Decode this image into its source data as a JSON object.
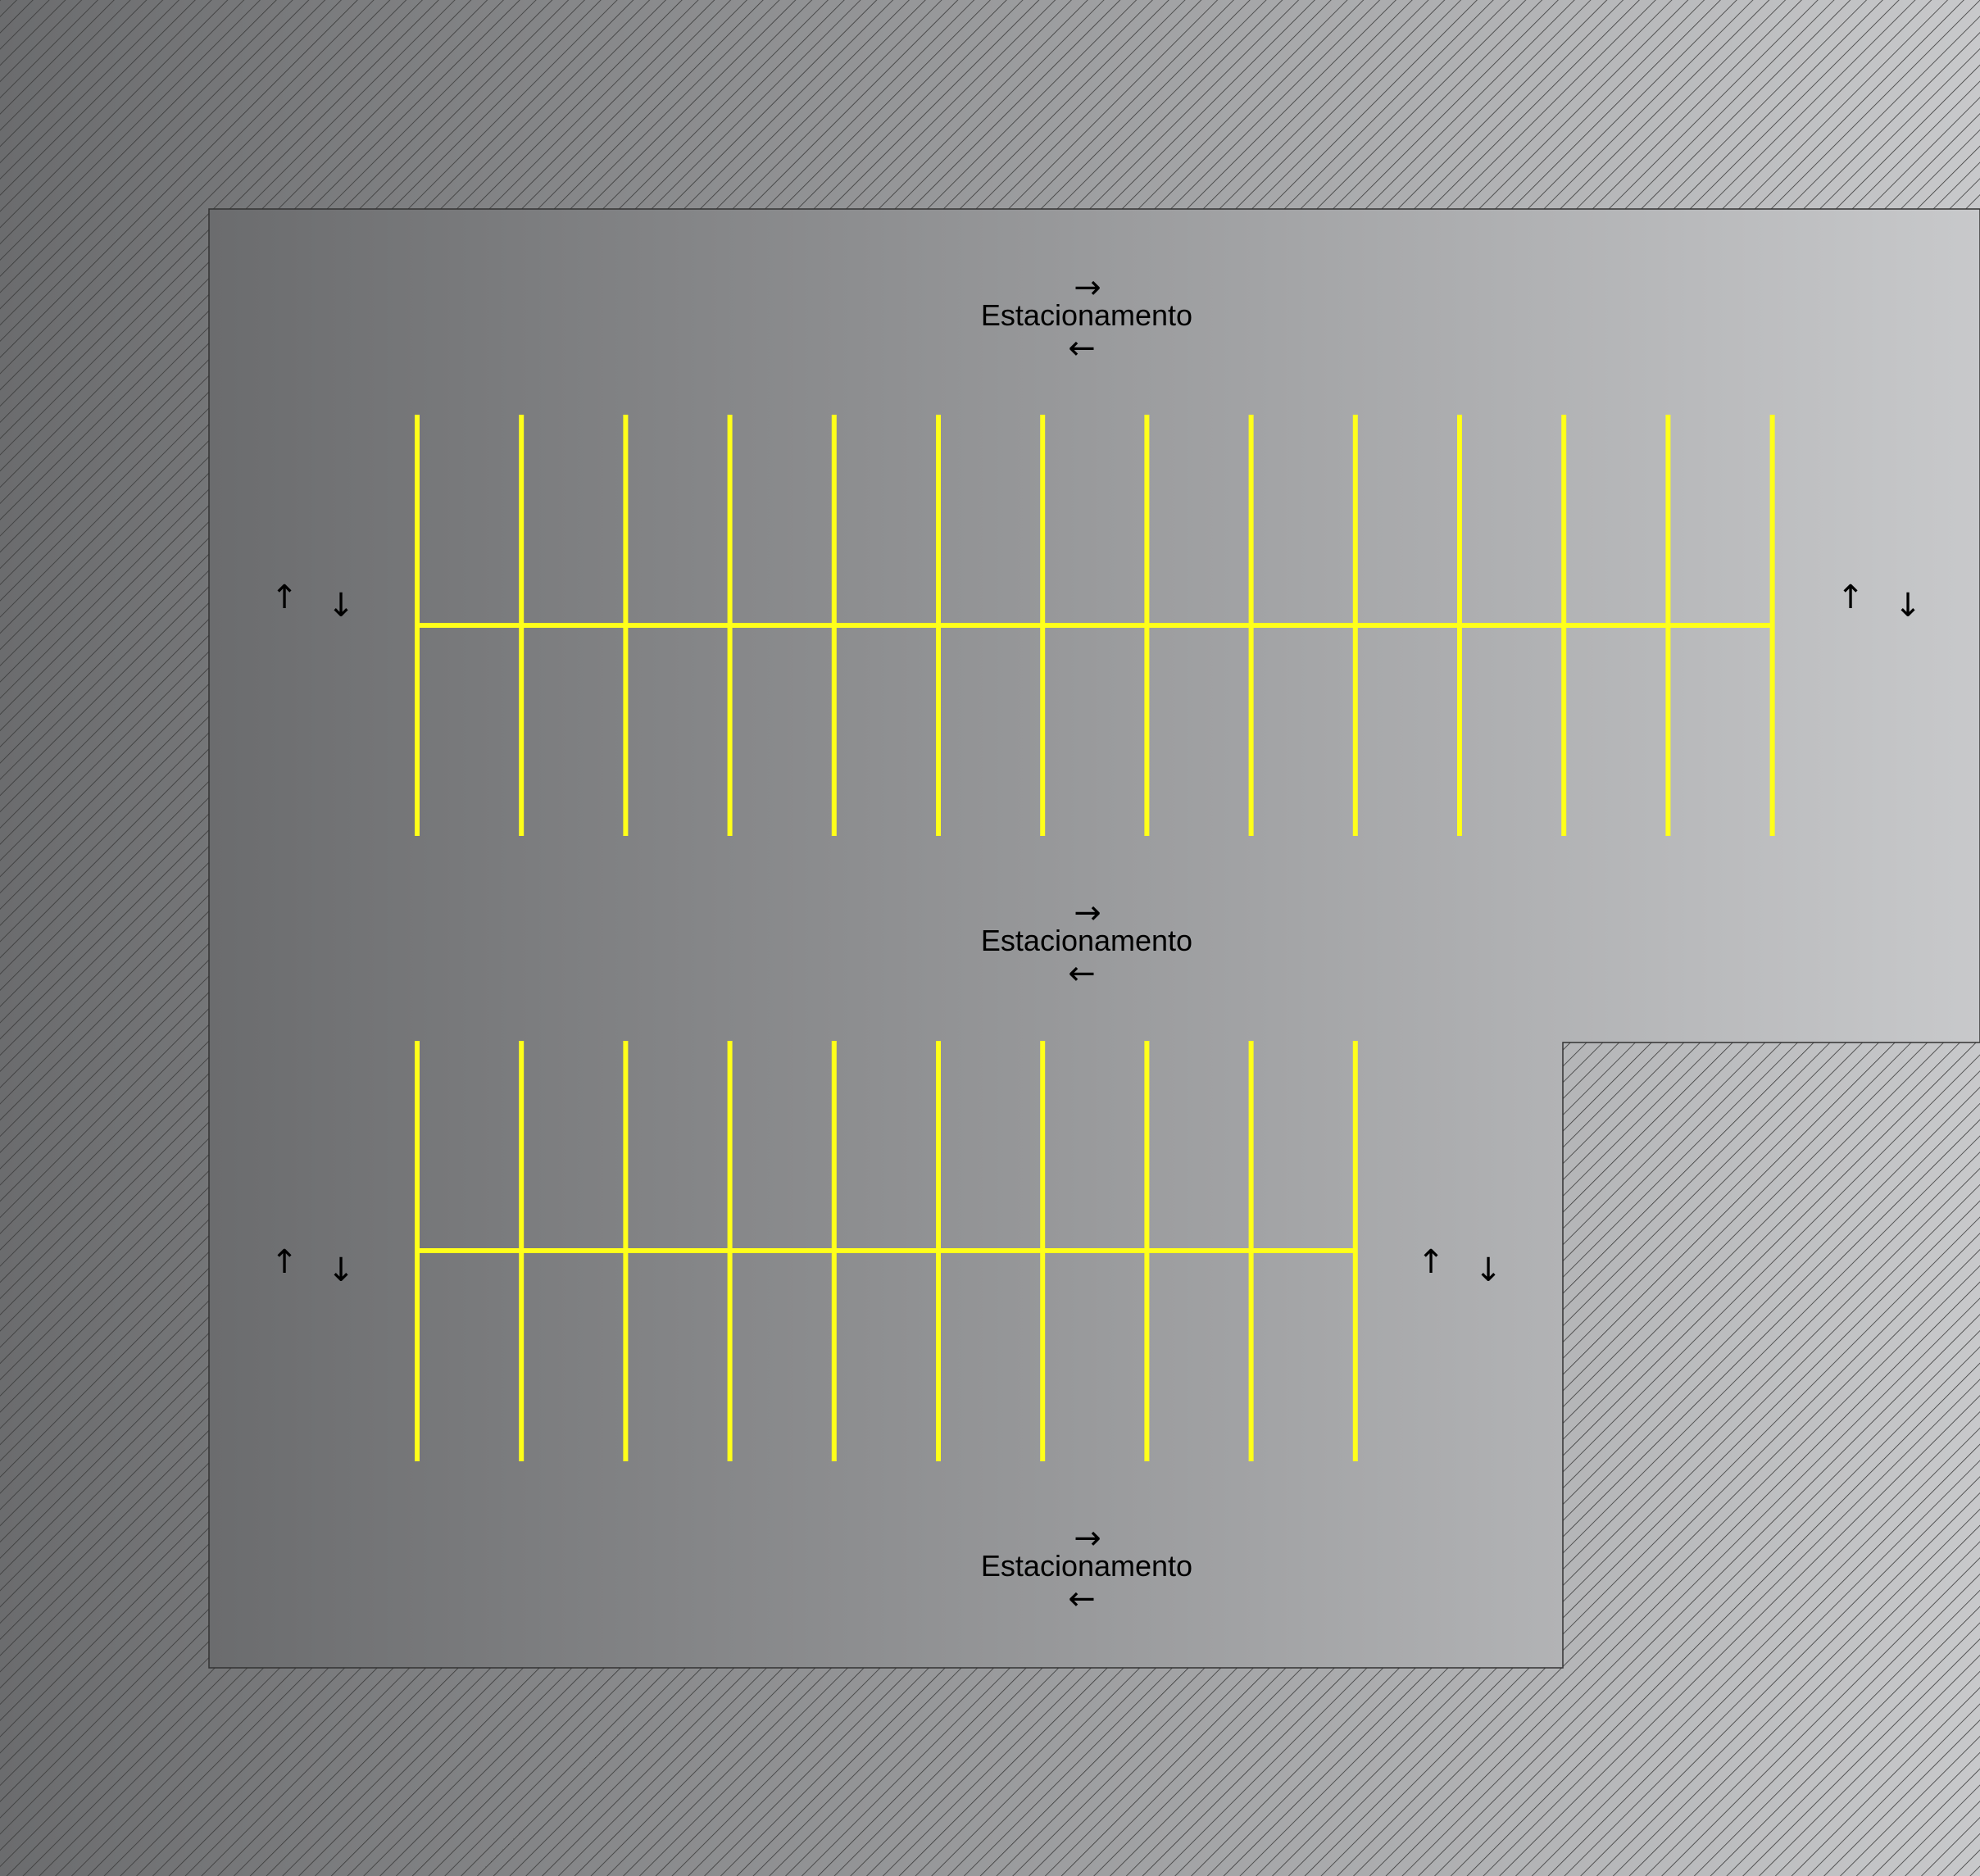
{
  "colors": {
    "gradient_start": "#6b6c6e",
    "gradient_end": "#c8c9cb",
    "hatch_line": "#3a3a3a",
    "stall_lines": "#ffff1a",
    "text": "#000000"
  },
  "lanes": [
    {
      "label": "Estacionamento",
      "arrow_top": "→",
      "arrow_bottom": "←"
    },
    {
      "label": "Estacionamento",
      "arrow_top": "→",
      "arrow_bottom": "←"
    },
    {
      "label": "Estacionamento",
      "arrow_top": "→",
      "arrow_bottom": "←"
    }
  ],
  "side_arrows": {
    "up": "↑",
    "down": "↓"
  },
  "parking_rows": [
    {
      "stall_dividers": 14,
      "rows": 2
    },
    {
      "stall_dividers": 10,
      "rows": 2
    }
  ]
}
